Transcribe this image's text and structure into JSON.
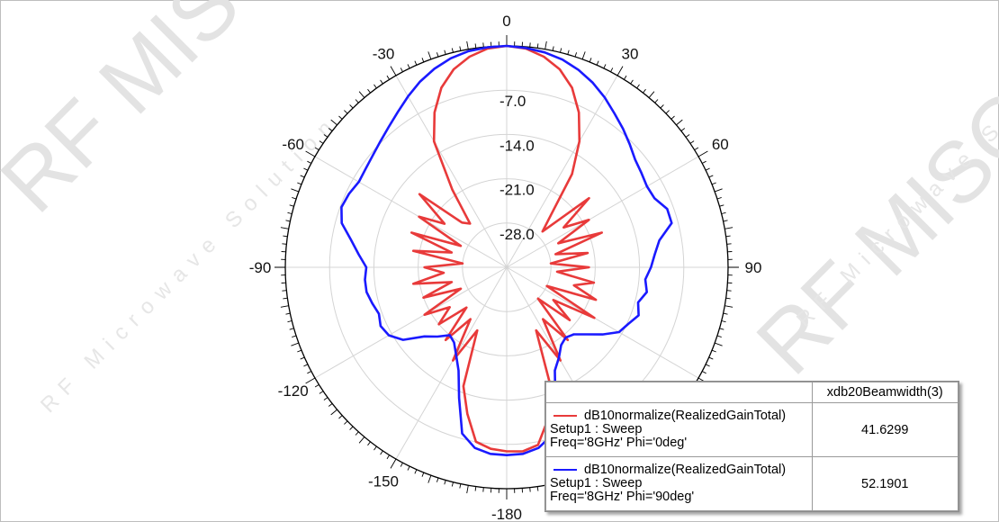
{
  "watermark": {
    "brand": "RF MISO",
    "tagline": "RF Microwave Solution",
    "color": "#dedede"
  },
  "chart_data": {
    "type": "polar",
    "theta_ticks": [
      {
        "angle": 0,
        "label": "0"
      },
      {
        "angle": 30,
        "label": "30"
      },
      {
        "angle": 60,
        "label": "60"
      },
      {
        "angle": 90,
        "label": "90"
      },
      {
        "angle": -30,
        "label": "-30"
      },
      {
        "angle": -60,
        "label": "-60"
      },
      {
        "angle": -90,
        "label": "-90"
      },
      {
        "angle": -120,
        "label": "-120"
      },
      {
        "angle": -150,
        "label": "-150"
      },
      {
        "angle": -180,
        "label": "-180"
      }
    ],
    "radial_ticks": [
      "-7.0",
      "-14.0",
      "-21.0",
      "-28.0"
    ],
    "radial_range": [
      -35,
      0
    ],
    "grid": true,
    "series": [
      {
        "color": "#e83a3a",
        "theta": [
          0,
          5,
          10,
          15,
          20,
          25,
          30,
          35,
          40,
          45,
          50,
          55,
          60,
          65,
          70,
          75,
          80,
          85,
          90,
          95,
          100,
          105,
          110,
          115,
          120,
          125,
          130,
          135,
          140,
          145,
          150,
          155,
          160,
          165,
          170,
          175,
          180,
          185,
          190,
          195,
          200,
          205,
          210,
          215,
          220,
          225,
          230,
          235,
          240,
          245,
          250,
          255,
          260,
          265,
          270,
          275,
          280,
          285,
          290,
          295,
          300,
          305,
          310,
          315,
          320,
          325,
          330,
          335,
          340,
          345,
          350,
          355
        ],
        "values": [
          0,
          -0.3,
          -1.2,
          -2.6,
          -4.8,
          -8,
          -12,
          -17,
          -24,
          -27,
          -18,
          -24,
          -20,
          -26,
          -19,
          -27,
          -22,
          -28,
          -22,
          -27,
          -21,
          -24,
          -20,
          -28,
          -19,
          -26,
          -22,
          -28,
          -20,
          -25,
          -18,
          -24,
          -14,
          -10,
          -6.5,
          -5.8,
          -5.9,
          -6.2,
          -7,
          -11,
          -15,
          -24,
          -18,
          -25,
          -20,
          -26,
          -21,
          -24,
          -20,
          -27,
          -21,
          -26,
          -20,
          -25,
          -22,
          -28,
          -20,
          -26,
          -19,
          -27,
          -19,
          -23,
          -17,
          -25,
          -26,
          -20,
          -12,
          -8,
          -4.8,
          -2.6,
          -1.2,
          -0.3
        ]
      },
      {
        "color": "#1a1aff",
        "theta": [
          0,
          5,
          10,
          15,
          20,
          25,
          30,
          35,
          40,
          45,
          50,
          55,
          60,
          65,
          70,
          75,
          80,
          85,
          90,
          95,
          100,
          105,
          110,
          115,
          120,
          125,
          130,
          135,
          140,
          145,
          150,
          155,
          160,
          165,
          170,
          175,
          180,
          185,
          190,
          195,
          200,
          205,
          210,
          215,
          220,
          225,
          230,
          235,
          240,
          245,
          250,
          255,
          260,
          265,
          270,
          275,
          280,
          285,
          290,
          295,
          300,
          305,
          310,
          315,
          320,
          325,
          330,
          335,
          340,
          345,
          350,
          355
        ],
        "values": [
          0,
          -0.2,
          -0.5,
          -1.0,
          -1.8,
          -2.8,
          -4.0,
          -5.3,
          -6.4,
          -7.5,
          -8.5,
          -9.0,
          -9.4,
          -9.2,
          -8.0,
          -8.0,
          -10.5,
          -11.5,
          -12.2,
          -13.0,
          -12.5,
          -13.5,
          -12.8,
          -13.8,
          -14.5,
          -16.5,
          -18.5,
          -20,
          -20.5,
          -20,
          -18.5,
          -17,
          -12.5,
          -7.5,
          -6.0,
          -5.4,
          -5.3,
          -5.4,
          -6.0,
          -7.8,
          -13,
          -17,
          -19,
          -20.5,
          -21,
          -19.5,
          -18,
          -15,
          -13.5,
          -13,
          -13.5,
          -13,
          -12.5,
          -12.5,
          -12.8,
          -11.5,
          -10,
          -8,
          -7.2,
          -7.5,
          -8.0,
          -7.8,
          -7.4,
          -6.8,
          -6.0,
          -5.0,
          -3.8,
          -2.6,
          -1.6,
          -0.8,
          -0.3,
          -0.1
        ]
      }
    ]
  },
  "legend": {
    "header": "xdb20Beamwidth(3)",
    "entries": [
      {
        "name": "dB10normalize(RealizedGainTotal)",
        "setup": "Setup1 : Sweep",
        "freq": "Freq='8GHz' Phi='0deg'",
        "value": "41.6299",
        "color": "#e83a3a"
      },
      {
        "name": "dB10normalize(RealizedGainTotal)",
        "setup": "Setup1 : Sweep",
        "freq": "Freq='8GHz' Phi='90deg'",
        "value": "52.1901",
        "color": "#1a1aff"
      }
    ]
  }
}
